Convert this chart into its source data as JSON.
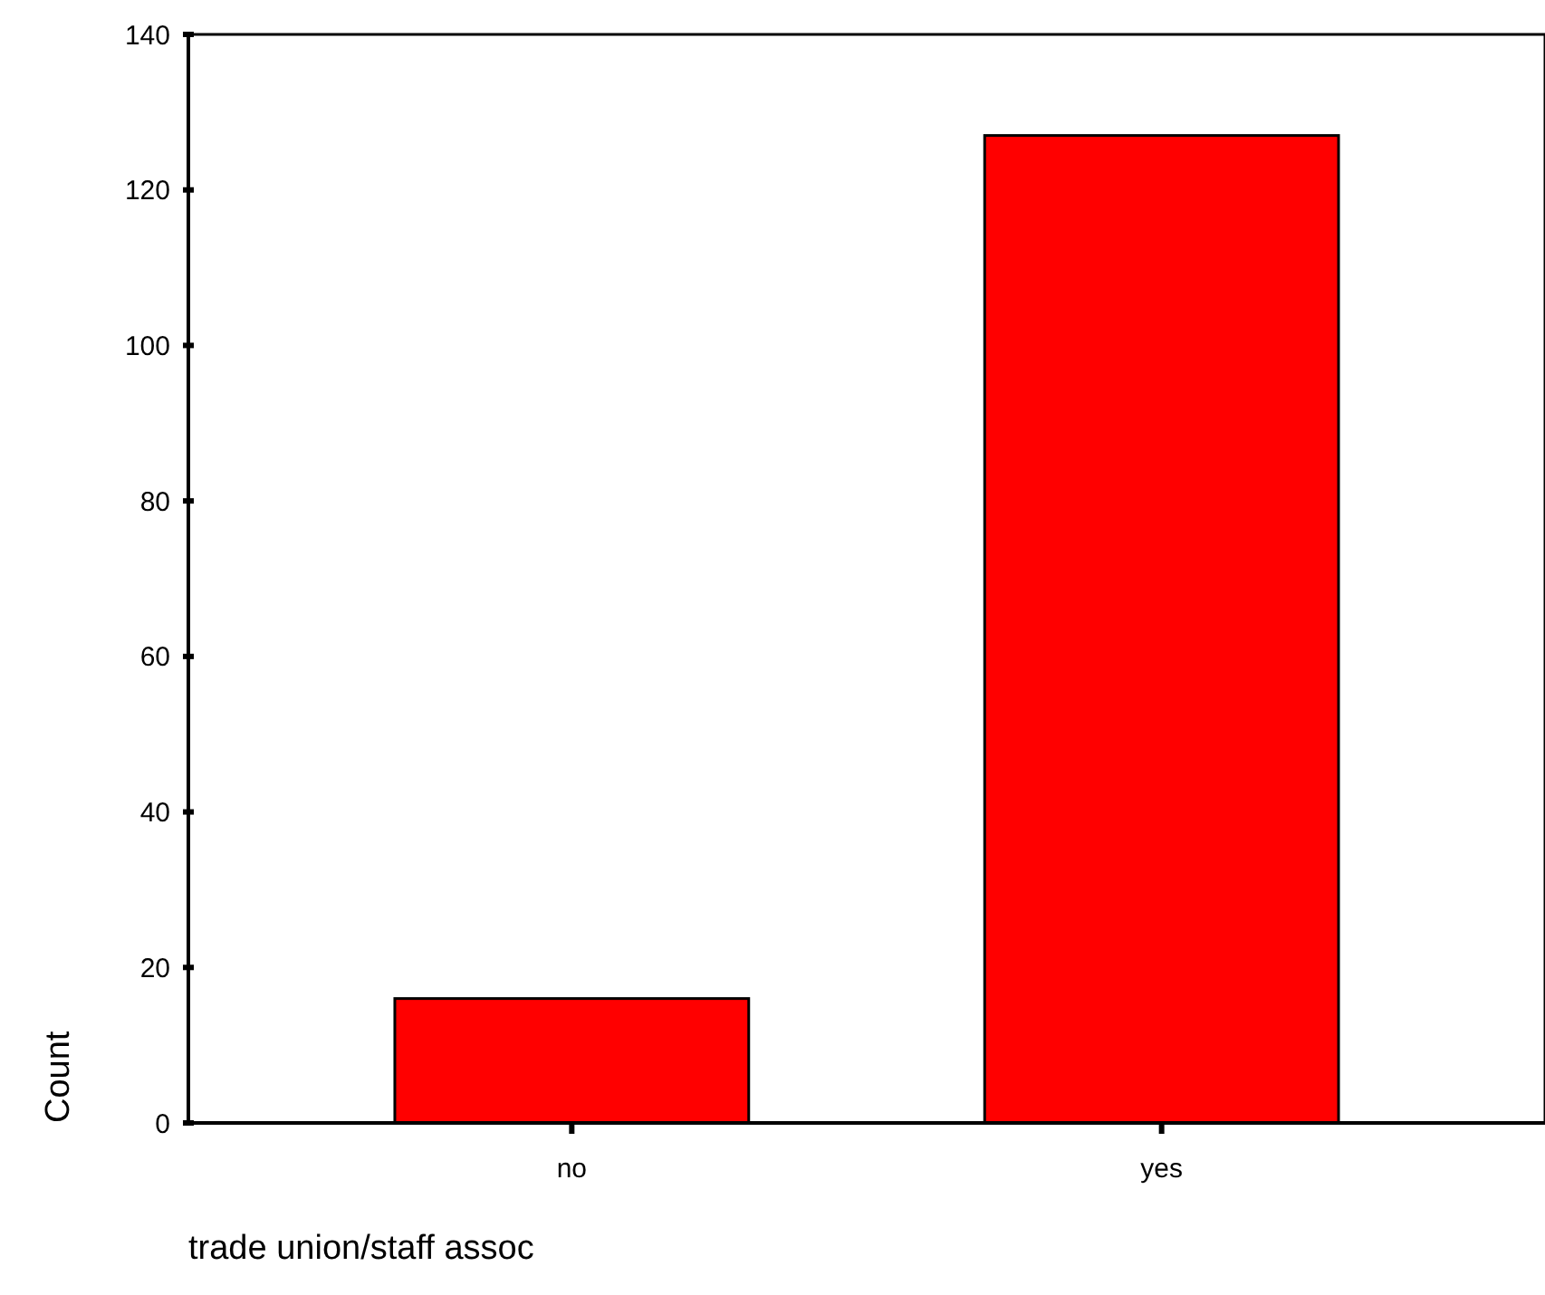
{
  "chart_data": {
    "type": "bar",
    "xlabel": "trade union/staff assoc",
    "ylabel": "Count",
    "categories": [
      "no",
      "yes"
    ],
    "values": [
      16,
      127
    ],
    "color": "#ff0000",
    "ylim": [
      0,
      140
    ],
    "yticks": [
      0,
      20,
      40,
      60,
      80,
      100,
      120,
      140
    ]
  }
}
